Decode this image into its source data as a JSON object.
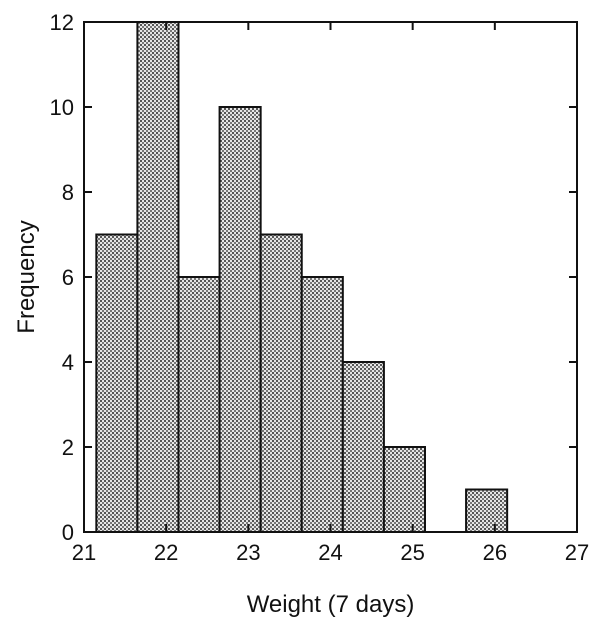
{
  "chart_data": {
    "type": "bar",
    "title": "",
    "xlabel": "Weight (7 days)",
    "ylabel": "Frequency",
    "xlim": [
      21,
      27
    ],
    "ylim": [
      0,
      12
    ],
    "xticks": [
      "21",
      "22",
      "23",
      "24",
      "25",
      "26",
      "27"
    ],
    "yticks": [
      "0",
      "2",
      "4",
      "6",
      "8",
      "10",
      "12"
    ],
    "grid": false,
    "bin_width": 0.5,
    "bins": [
      {
        "x0": 21.15,
        "x1": 21.65,
        "value": 7
      },
      {
        "x0": 21.65,
        "x1": 22.15,
        "value": 12
      },
      {
        "x0": 22.15,
        "x1": 22.65,
        "value": 6
      },
      {
        "x0": 22.65,
        "x1": 23.15,
        "value": 10
      },
      {
        "x0": 23.15,
        "x1": 23.65,
        "value": 7
      },
      {
        "x0": 23.65,
        "x1": 24.15,
        "value": 6
      },
      {
        "x0": 24.15,
        "x1": 24.65,
        "value": 4
      },
      {
        "x0": 24.65,
        "x1": 25.15,
        "value": 2
      },
      {
        "x0": 25.15,
        "x1": 25.65,
        "value": 0
      },
      {
        "x0": 25.65,
        "x1": 26.15,
        "value": 1
      }
    ],
    "colors": {
      "bar_fill": "#c8c8c8",
      "bar_stroke": "#111111",
      "axis": "#111111"
    }
  }
}
